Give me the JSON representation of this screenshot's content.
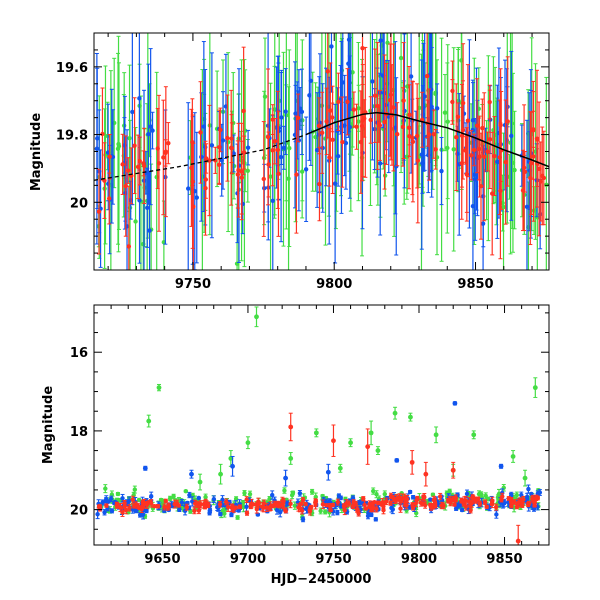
{
  "chart_data": [
    {
      "type": "scatter",
      "panel": "top",
      "title": "",
      "xlabel": "",
      "ylabel": "Magnitude",
      "xlim": [
        9715,
        9876
      ],
      "ylim": [
        20.2,
        19.5
      ],
      "xticks": [
        9750,
        9800,
        9850
      ],
      "xtick_labels": [
        "9750",
        "9800",
        "9850"
      ],
      "yticks": [
        19.6,
        19.8,
        20.0
      ],
      "ytick_labels": [
        "19.6",
        "19.8",
        "20"
      ],
      "grid": false,
      "series": [
        {
          "name": "green",
          "color": "#44dd44",
          "marker": "point with error bar",
          "mean": 19.83,
          "scatter": 0.1,
          "error_typical": 0.2
        },
        {
          "name": "blue",
          "color": "#1155ee",
          "marker": "point with error bar",
          "mean": 19.83,
          "scatter": 0.09,
          "error_typical": 0.17
        },
        {
          "name": "red",
          "color": "#ff3322",
          "marker": "point with error bar",
          "mean": 19.84,
          "scatter": 0.07,
          "error_typical": 0.12
        }
      ],
      "model_curve": {
        "color": "#000000",
        "style": "dashed then solid",
        "x": [
          9715,
          9730,
          9745,
          9760,
          9775,
          9790,
          9800,
          9810,
          9815,
          9822,
          9830,
          9840,
          9850,
          9860,
          9870,
          9876
        ],
        "y": [
          19.935,
          19.915,
          19.895,
          19.87,
          19.845,
          19.8,
          19.765,
          19.74,
          19.735,
          19.742,
          19.76,
          19.78,
          19.81,
          19.845,
          19.875,
          19.895
        ]
      }
    },
    {
      "type": "scatter",
      "panel": "bottom",
      "title": "",
      "xlabel": "HJD−2450000",
      "ylabel": "Magnitude",
      "xlim": [
        9610,
        9876
      ],
      "ylim": [
        20.9,
        14.8
      ],
      "xticks": [
        9650,
        9700,
        9750,
        9800,
        9850
      ],
      "xtick_labels": [
        "9650",
        "9700",
        "9750",
        "9800",
        "9850"
      ],
      "yticks": [
        16,
        18,
        20
      ],
      "ytick_labels": [
        "16",
        "18",
        "20"
      ],
      "grid": false,
      "series": [
        {
          "name": "green",
          "color": "#44dd44",
          "marker": "point with error bar",
          "mean": 19.85,
          "scatter": 0.15
        },
        {
          "name": "blue",
          "color": "#1155ee",
          "marker": "point with error bar",
          "mean": 19.9,
          "scatter": 0.12
        },
        {
          "name": "red",
          "color": "#ff3322",
          "marker": "point with error bar",
          "mean": 19.9,
          "scatter": 0.08
        }
      ],
      "outliers": [
        {
          "series": "green",
          "x": 9705,
          "y": 15.1,
          "err": 0.25
        },
        {
          "series": "green",
          "x": 9648,
          "y": 16.9,
          "err": 0.08
        },
        {
          "series": "green",
          "x": 9868,
          "y": 16.9,
          "err": 0.25
        },
        {
          "series": "green",
          "x": 9642,
          "y": 17.75,
          "err": 0.15
        },
        {
          "series": "green",
          "x": 9786,
          "y": 17.55,
          "err": 0.15
        },
        {
          "series": "green",
          "x": 9795,
          "y": 17.65,
          "err": 0.1
        },
        {
          "series": "green",
          "x": 9810,
          "y": 18.1,
          "err": 0.2
        },
        {
          "series": "green",
          "x": 9832,
          "y": 18.1,
          "err": 0.1
        },
        {
          "series": "green",
          "x": 9740,
          "y": 18.05,
          "err": 0.1
        },
        {
          "series": "green",
          "x": 9700,
          "y": 18.3,
          "err": 0.15
        },
        {
          "series": "green",
          "x": 9690,
          "y": 18.7,
          "err": 0.2
        },
        {
          "series": "green",
          "x": 9725,
          "y": 18.7,
          "err": 0.15
        },
        {
          "series": "green",
          "x": 9760,
          "y": 18.3,
          "err": 0.1
        },
        {
          "series": "green",
          "x": 9772,
          "y": 18.05,
          "err": 0.3
        },
        {
          "series": "green",
          "x": 9754,
          "y": 18.95,
          "err": 0.1
        },
        {
          "series": "green",
          "x": 9776,
          "y": 18.5,
          "err": 0.1
        },
        {
          "series": "green",
          "x": 9820,
          "y": 19.0,
          "err": 0.15
        },
        {
          "series": "green",
          "x": 9855,
          "y": 18.65,
          "err": 0.15
        },
        {
          "series": "green",
          "x": 9862,
          "y": 19.2,
          "err": 0.2
        },
        {
          "series": "green",
          "x": 9684,
          "y": 19.1,
          "err": 0.25
        },
        {
          "series": "green",
          "x": 9672,
          "y": 19.3,
          "err": 0.2
        },
        {
          "series": "blue",
          "x": 9821,
          "y": 17.3,
          "err": 0.04
        },
        {
          "series": "blue",
          "x": 9640,
          "y": 18.95,
          "err": 0.05
        },
        {
          "series": "blue",
          "x": 9667,
          "y": 19.1,
          "err": 0.1
        },
        {
          "series": "blue",
          "x": 9691,
          "y": 18.9,
          "err": 0.25
        },
        {
          "series": "blue",
          "x": 9722,
          "y": 19.2,
          "err": 0.2
        },
        {
          "series": "blue",
          "x": 9747,
          "y": 19.05,
          "err": 0.2
        },
        {
          "series": "blue",
          "x": 9787,
          "y": 18.75,
          "err": 0.04
        },
        {
          "series": "blue",
          "x": 9848,
          "y": 18.9,
          "err": 0.05
        },
        {
          "series": "red",
          "x": 9725,
          "y": 17.9,
          "err": 0.35
        },
        {
          "series": "red",
          "x": 9750,
          "y": 18.25,
          "err": 0.4
        },
        {
          "series": "red",
          "x": 9770,
          "y": 18.4,
          "err": 0.45
        },
        {
          "series": "red",
          "x": 9796,
          "y": 18.8,
          "err": 0.3
        },
        {
          "series": "red",
          "x": 9804,
          "y": 19.1,
          "err": 0.3
        },
        {
          "series": "red",
          "x": 9820,
          "y": 19.0,
          "err": 0.2
        },
        {
          "series": "red",
          "x": 9858,
          "y": 20.8,
          "err": 0.4
        }
      ]
    }
  ]
}
